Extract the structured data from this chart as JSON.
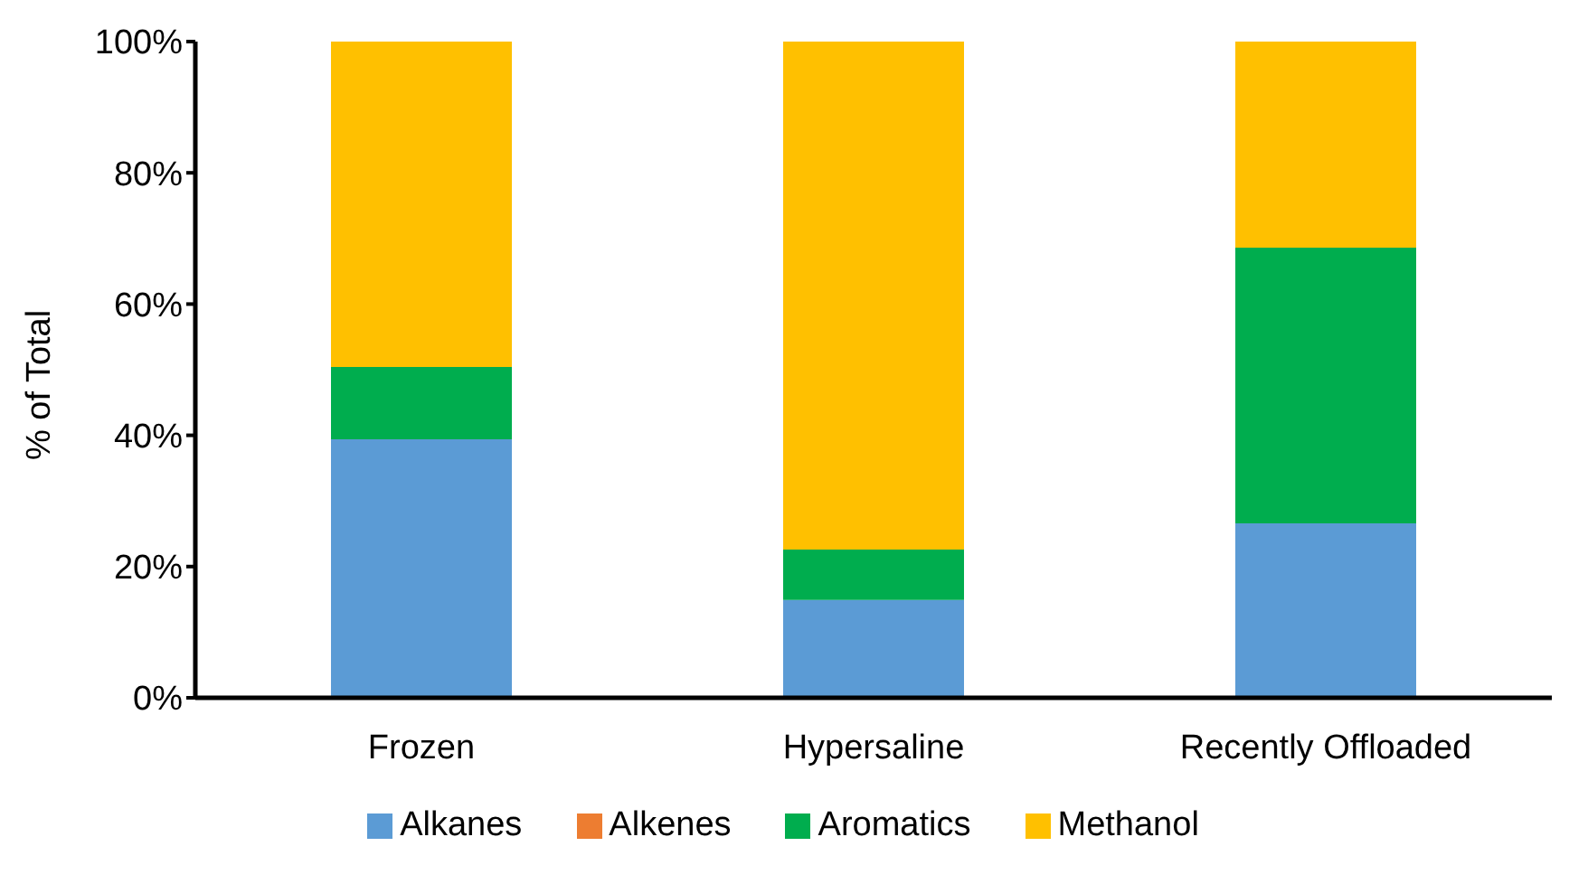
{
  "chart_data": {
    "type": "bar",
    "stacked": true,
    "ylabel": "% of Total",
    "categories": [
      "Frozen",
      "Hypersaline",
      "Recently Offloaded"
    ],
    "series": [
      {
        "name": "Alkanes",
        "color": "#5b9bd5",
        "values": [
          39.4,
          14.9,
          26.6
        ]
      },
      {
        "name": "Alkenes",
        "color": "#ed7d31",
        "values": [
          0,
          0,
          0
        ]
      },
      {
        "name": "Aromatics",
        "color": "#00ad4e",
        "values": [
          11.0,
          7.7,
          42.0
        ]
      },
      {
        "name": "Methanol",
        "color": "#ffc000",
        "values": [
          49.6,
          77.4,
          31.4
        ]
      }
    ],
    "ylim": [
      0,
      100
    ],
    "yticks": [
      {
        "value": 0,
        "label": "0%"
      },
      {
        "value": 20,
        "label": "20%"
      },
      {
        "value": 40,
        "label": "40%"
      },
      {
        "value": 60,
        "label": "60%"
      },
      {
        "value": 80,
        "label": "80%"
      },
      {
        "value": 100,
        "label": "100%"
      }
    ],
    "grid": false,
    "legend": "bottom"
  }
}
